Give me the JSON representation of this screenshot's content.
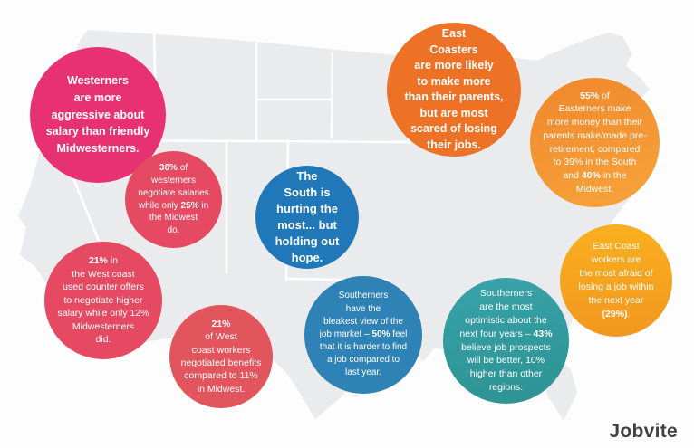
{
  "brand": {
    "label": "Jobvite",
    "color": "#414044"
  },
  "map": {
    "region": "united-states",
    "fill": "#EAEBEC",
    "border_color": "#FFFFFF"
  },
  "bubbles": [
    {
      "id": "westerners-aggressive",
      "theme": {
        "color": "#E73170"
      },
      "segments": [
        {
          "t": "Westerners\nare more\naggressive about\nsalary than friendly\nMidwesterners.",
          "b": true
        }
      ]
    },
    {
      "id": "westerners-negotiate-salaries",
      "theme": {
        "color": "#E54A62"
      },
      "segments": [
        {
          "t": "36%",
          "b": true
        },
        {
          "t": " of\nwesterners\nnegotiate salaries\nwhile only ",
          "b": false
        },
        {
          "t": "25%",
          "b": true
        },
        {
          "t": " in\nthe Midwest\ndo.",
          "b": false
        }
      ]
    },
    {
      "id": "west-coast-counter-offers",
      "theme": {
        "color": "#E54A62"
      },
      "segments": [
        {
          "t": "21%",
          "b": true
        },
        {
          "t": " in\nthe West coast\nused counter offers\nto negotiate higher\nsalary while only 12%\nMidwesterners\ndid.",
          "b": false
        }
      ]
    },
    {
      "id": "west-coast-benefits",
      "theme": {
        "color": "#E2555C"
      },
      "segments": [
        {
          "t": "21%",
          "b": true
        },
        {
          "t": "\nof West\ncoast workers\nnegotiated benefits\ncompared to 11%\nin Midwest.",
          "b": false
        }
      ]
    },
    {
      "id": "south-hurting-hope",
      "theme": {
        "color": "#2178B8"
      },
      "segments": [
        {
          "t": "The\nSouth is\nhurting the\nmost... but\nholding out\nhope.",
          "b": true
        }
      ]
    },
    {
      "id": "southerners-bleakest-view",
      "theme": {
        "color": "#2E82B6"
      },
      "segments": [
        {
          "t": "Southerners\nhave the\nbleakest view of the\njob market – ",
          "b": false
        },
        {
          "t": "50%",
          "b": true
        },
        {
          "t": " feel\nthat it is harder to find\na job compared to\nlast year.",
          "b": false
        }
      ]
    },
    {
      "id": "southerners-optimistic",
      "theme": {
        "color": "#38A3AA",
        "color2": "#2D9292",
        "angle": "170deg"
      },
      "segments": [
        {
          "t": "Southerners\nare the most\noptimistic about the\nnext four years – ",
          "b": false
        },
        {
          "t": "43%",
          "b": true
        },
        {
          "t": "\nbelieve job prospects\nwill be better, 10%\nhigher than other\nregions.",
          "b": false
        }
      ]
    },
    {
      "id": "east-coasters-parents",
      "theme": {
        "color": "#ED7226"
      },
      "segments": [
        {
          "t": "East\nCoasters\nare more likely\nto make more\nthan their parents,\nbut are most\nscared of losing\ntheir jobs.",
          "b": true
        }
      ]
    },
    {
      "id": "easterners-more-money",
      "theme": {
        "color": "#F0872C",
        "color2": "#F7A43B",
        "angle": "160deg"
      },
      "segments": [
        {
          "t": "55%",
          "b": true
        },
        {
          "t": " of\nEasterners make\nmore money than their\nparents make/made pre-\nretirement, compared\nto 39% in the South\nand ",
          "b": false
        },
        {
          "t": "40%",
          "b": true
        },
        {
          "t": " in the\nMidwest.",
          "b": false
        }
      ]
    },
    {
      "id": "east-coast-afraid",
      "theme": {
        "color": "#F9B01F",
        "color2": "#F2971F",
        "angle": "180deg"
      },
      "segments": [
        {
          "t": "East Coast\nworkers are\nthe most afraid of\nlosing a job within\nthe next year\n",
          "b": false
        },
        {
          "t": "(29%)",
          "b": true
        },
        {
          "t": ".",
          "b": false
        }
      ]
    }
  ]
}
